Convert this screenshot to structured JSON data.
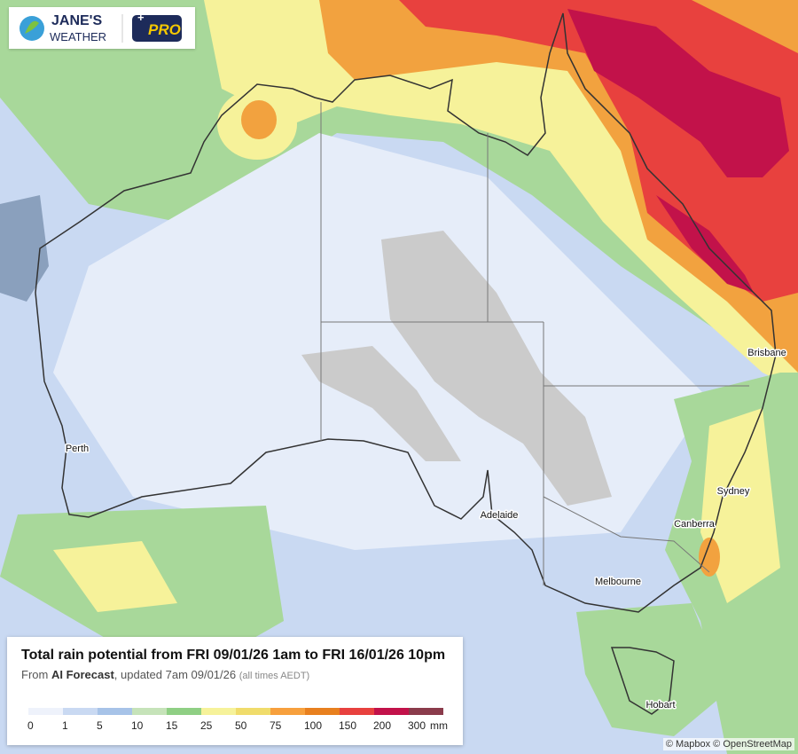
{
  "logo": {
    "line1": "JANE'S",
    "line2": "WEATHER",
    "badge": "PRO"
  },
  "cities": [
    "Perth",
    "Adelaide",
    "Melbourne",
    "Canberra",
    "Sydney",
    "Brisbane",
    "Hobart"
  ],
  "legend": {
    "title": "Total rain potential from FRI 09/01/26 1am to FRI 16/01/26 10pm",
    "subtitle": {
      "prefix": "From",
      "source": "AI Forecast",
      "updated": ", updated 7am 09/01/26",
      "note": "(all times AEDT)"
    },
    "stops": [
      0,
      1,
      5,
      10,
      15,
      25,
      50,
      75,
      100,
      150,
      200,
      300
    ],
    "unit": "mm",
    "colors": [
      "#eef2fb",
      "#c9d9f2",
      "#a7c3e8",
      "#c6e3b9",
      "#8fcf84",
      "#f6f29a",
      "#f0dc6b",
      "#f7a03d",
      "#e8801f",
      "#e8413e",
      "#c2124a",
      "#8a3b4b"
    ]
  },
  "attribution": "© Mapbox © OpenStreetMap"
}
